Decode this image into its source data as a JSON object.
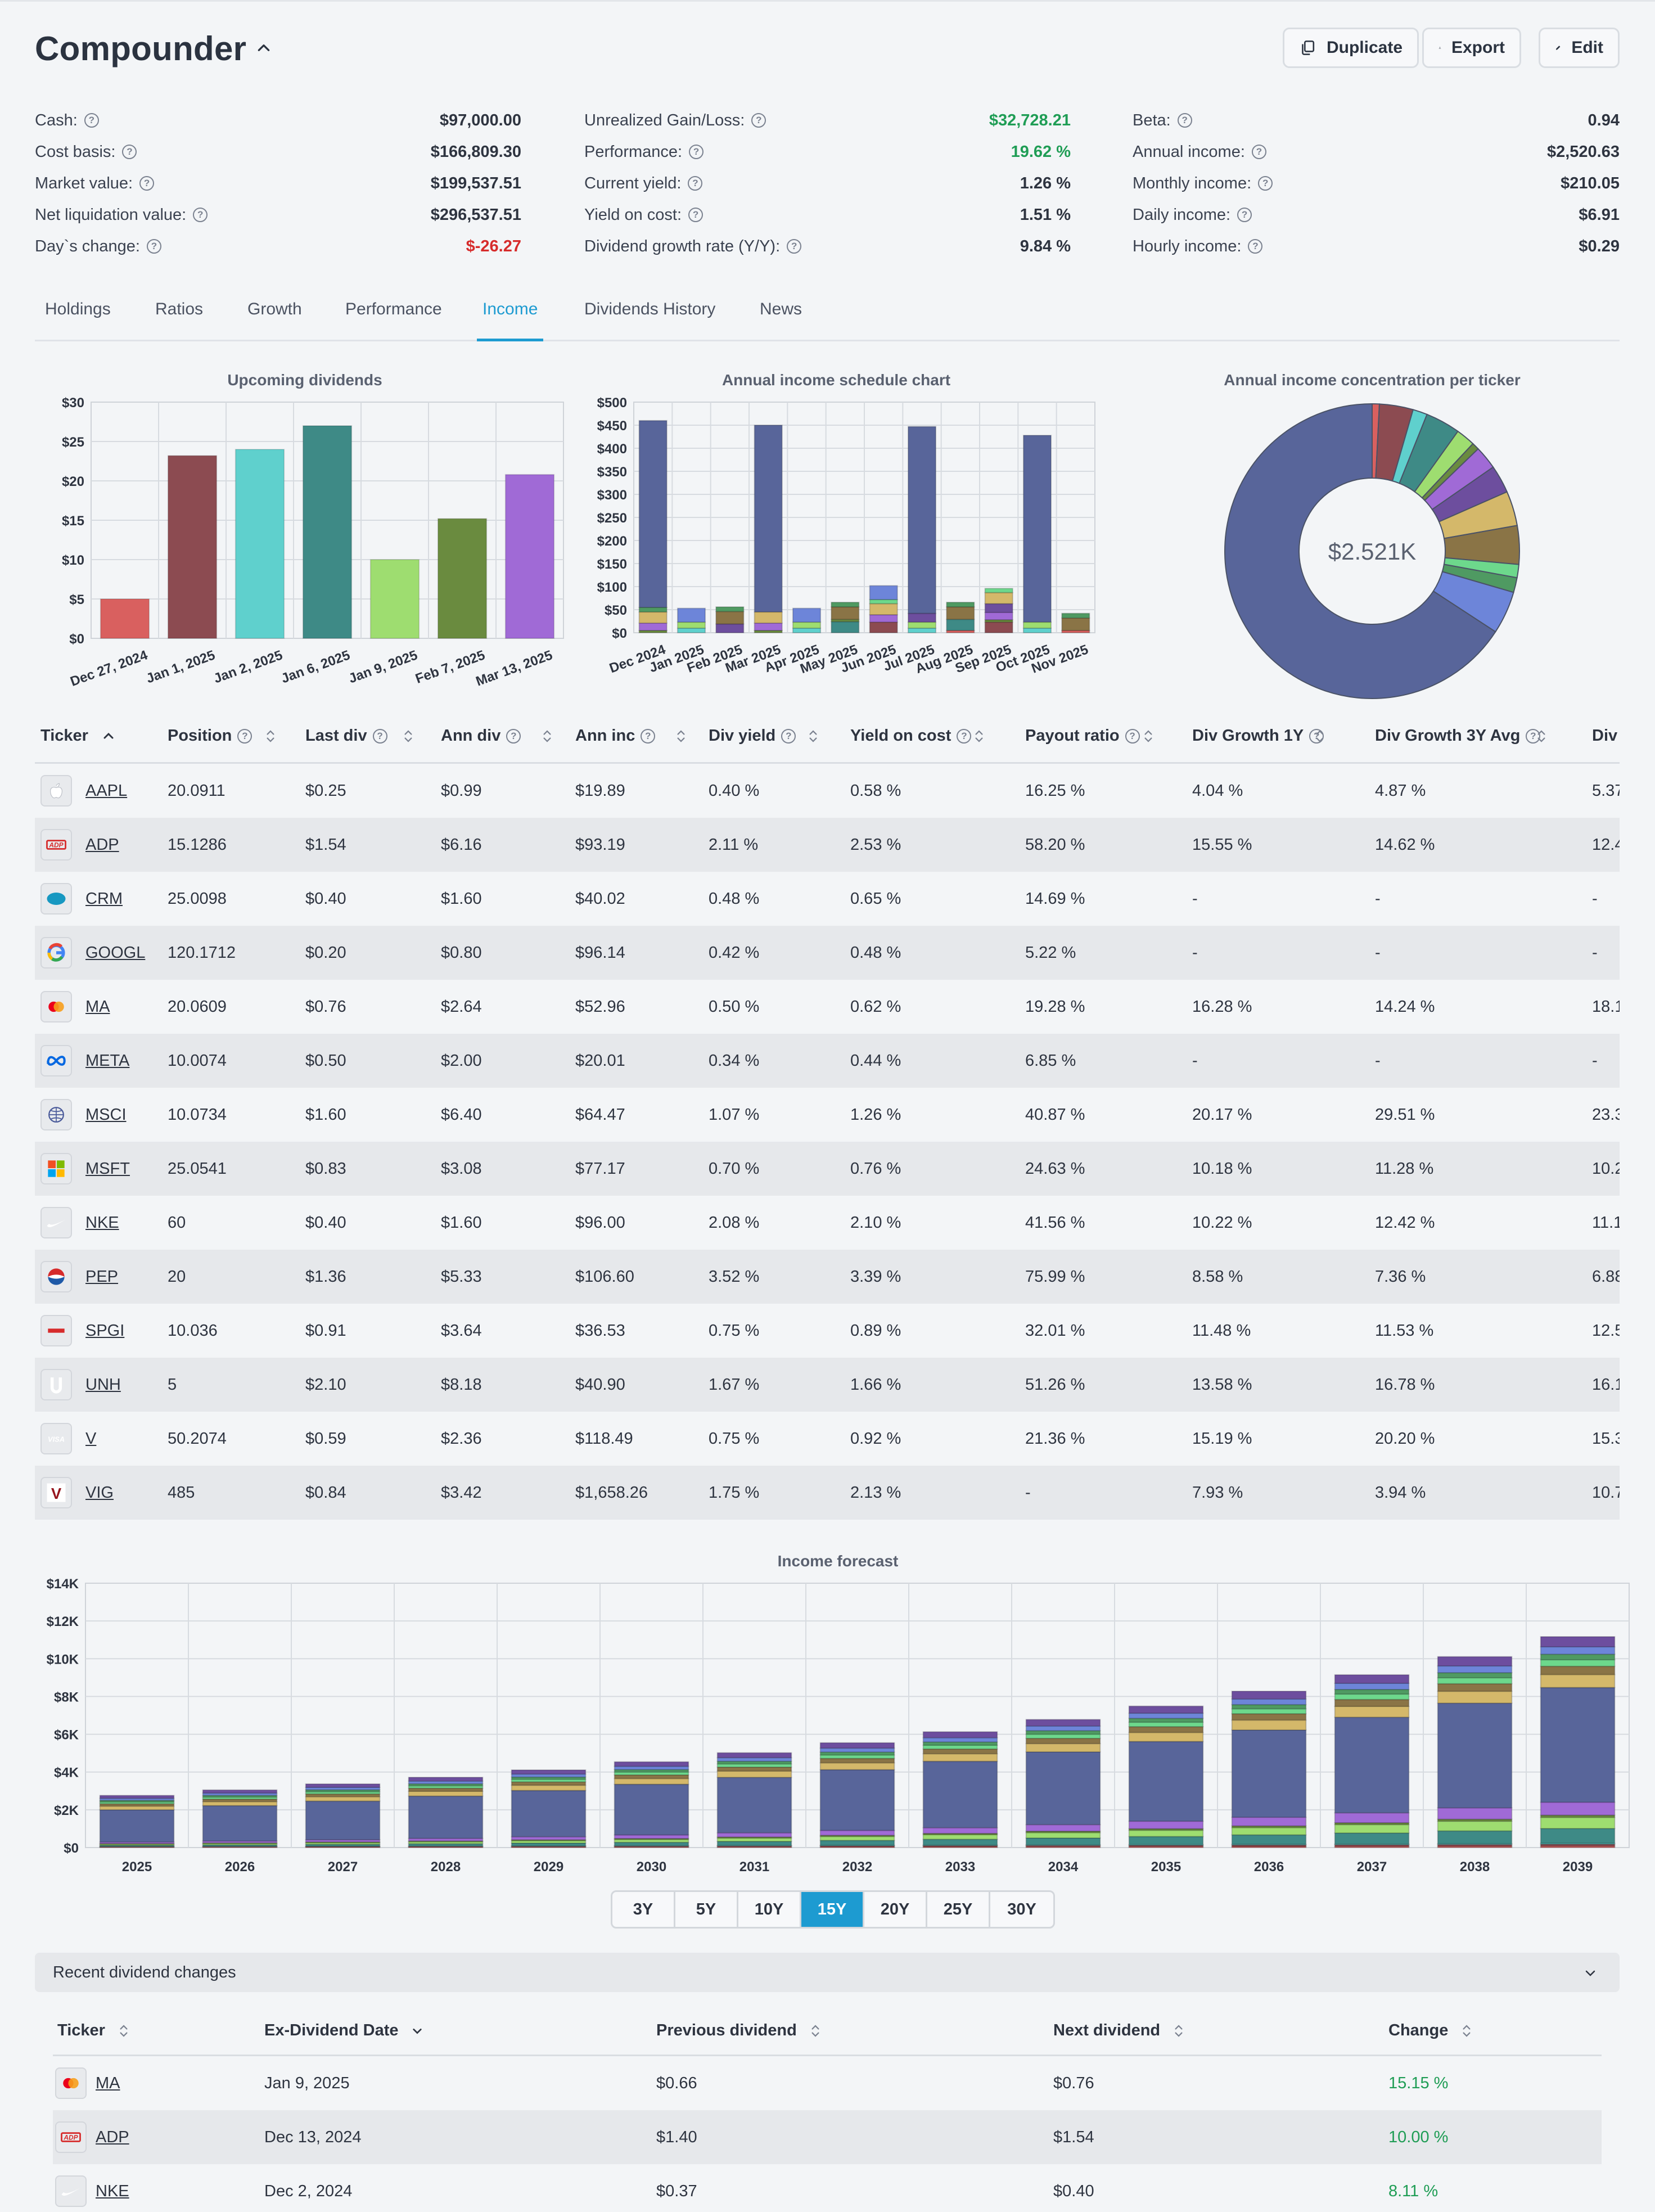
{
  "portfolio": {
    "title": "Compounder"
  },
  "actions": {
    "duplicate": "Duplicate",
    "export": "Export",
    "edit": "Edit"
  },
  "stats": {
    "col1": [
      {
        "label": "Cash:",
        "value": "$97,000.00"
      },
      {
        "label": "Cost basis:",
        "value": "$166,809.30"
      },
      {
        "label": "Market value:",
        "value": "$199,537.51"
      },
      {
        "label": "Net liquidation value:",
        "value": "$296,537.51"
      },
      {
        "label": "Day`s change:",
        "value": "$-26.27"
      }
    ],
    "col2": [
      {
        "label": "Unrealized Gain/Loss:",
        "value": "$32,728.21"
      },
      {
        "label": "Performance:",
        "value": "19.62 %"
      },
      {
        "label": "Current yield:",
        "value": "1.26 %"
      },
      {
        "label": "Yield on cost:",
        "value": "1.51 %"
      },
      {
        "label": "Dividend growth rate (Y/Y):",
        "value": "9.84 %"
      }
    ],
    "col3": [
      {
        "label": "Beta:",
        "value": "0.94"
      },
      {
        "label": "Annual income:",
        "value": "$2,520.63"
      },
      {
        "label": "Monthly income:",
        "value": "$210.05"
      },
      {
        "label": "Daily income:",
        "value": "$6.91"
      },
      {
        "label": "Hourly income:",
        "value": "$0.29"
      }
    ]
  },
  "tabs": [
    "Holdings",
    "Ratios",
    "Growth",
    "Performance",
    "Income",
    "Dividends History",
    "News"
  ],
  "active_tab": "Income",
  "colors": {
    "AAPL": "#d9605f",
    "ADP": "#8c4b51",
    "CRM": "#5fd0cd",
    "GOOGL": "#3e8a86",
    "MA": "#9edd70",
    "META": "#6a8b3f",
    "MSCI": "#a06ad6",
    "MSFT": "#6d4e9e",
    "NKE": "#d4b86a",
    "PEP": "#8a7446",
    "SPGI": "#6dd88c",
    "UNH": "#4f9a62",
    "V": "#6d85d9",
    "VIG": "#58659a",
    "accent": "#1d9bd1",
    "positive": "#1f9d55",
    "negative": "#d62b2b"
  },
  "chart_data": [
    {
      "type": "bar",
      "title": "Upcoming dividends",
      "categories": [
        "Dec 27, 2024",
        "Jan 1, 2025",
        "Jan 2, 2025",
        "Jan 6, 2025",
        "Jan 9, 2025",
        "Feb 7, 2025",
        "Mar 13, 2025"
      ],
      "values": [
        5,
        23.2,
        24,
        27,
        10,
        15.2,
        20.8
      ],
      "bar_colors": [
        "#d9605f",
        "#8c4b51",
        "#5fd0cd",
        "#3e8a86",
        "#9edd70",
        "#6a8b3f",
        "#a06ad6"
      ],
      "ylim": [
        0,
        30
      ],
      "yticks": [
        "$0",
        "$5",
        "$10",
        "$15",
        "$20",
        "$25",
        "$30"
      ],
      "grid": true
    },
    {
      "type": "bar",
      "stacked": true,
      "title": "Annual income schedule chart",
      "categories": [
        "Dec 2024",
        "Jan 2025",
        "Feb 2025",
        "Mar 2025",
        "Apr 2025",
        "May 2025",
        "Jun 2025",
        "Jul 2025",
        "Aug 2025",
        "Sep 2025",
        "Oct 2025",
        "Nov 2025"
      ],
      "series": [
        {
          "name": "AAPL",
          "values": [
            0,
            0,
            0,
            0,
            0,
            0,
            0,
            0,
            5,
            0,
            0,
            5
          ]
        },
        {
          "name": "ADP",
          "values": [
            0,
            0,
            0,
            0,
            0,
            0,
            23,
            0,
            0,
            23,
            0,
            0
          ]
        },
        {
          "name": "CRM",
          "values": [
            0,
            10,
            0,
            0,
            10,
            0,
            0,
            10,
            0,
            0,
            10,
            0
          ]
        },
        {
          "name": "GOOGL",
          "values": [
            0,
            0,
            0,
            0,
            0,
            24,
            0,
            0,
            24,
            0,
            0,
            0
          ]
        },
        {
          "name": "MA",
          "values": [
            0,
            13,
            0,
            0,
            13,
            0,
            0,
            13,
            0,
            0,
            13,
            0
          ]
        },
        {
          "name": "META",
          "values": [
            5,
            0,
            0,
            5,
            0,
            5,
            0,
            0,
            0,
            5,
            0,
            0
          ]
        },
        {
          "name": "MSCI",
          "values": [
            16,
            0,
            0,
            16,
            0,
            0,
            16,
            0,
            0,
            16,
            0,
            0
          ]
        },
        {
          "name": "MSFT",
          "values": [
            0,
            0,
            19,
            0,
            0,
            0,
            0,
            19,
            0,
            19,
            0,
            0
          ]
        },
        {
          "name": "NKE",
          "values": [
            24,
            0,
            0,
            24,
            0,
            0,
            24,
            0,
            0,
            24,
            0,
            0
          ]
        },
        {
          "name": "PEP",
          "values": [
            0,
            0,
            27,
            0,
            0,
            27,
            0,
            0,
            27,
            0,
            0,
            27
          ]
        },
        {
          "name": "SPGI",
          "values": [
            0,
            0,
            0,
            0,
            0,
            0,
            9,
            0,
            0,
            9,
            0,
            0
          ]
        },
        {
          "name": "UNH",
          "values": [
            10,
            0,
            10,
            0,
            0,
            10,
            0,
            0,
            10,
            0,
            0,
            10
          ]
        },
        {
          "name": "V",
          "values": [
            0,
            30,
            0,
            0,
            30,
            0,
            30,
            0,
            0,
            0,
            0,
            0
          ]
        },
        {
          "name": "VIG",
          "values": [
            405,
            0,
            0,
            405,
            0,
            0,
            0,
            405,
            0,
            0,
            405,
            0
          ]
        }
      ],
      "ylim": [
        0,
        500
      ],
      "yticks": [
        "$0",
        "$50",
        "$100",
        "$150",
        "$200",
        "$250",
        "$300",
        "$350",
        "$400",
        "$450",
        "$500"
      ],
      "grid": true
    },
    {
      "type": "pie",
      "donut": true,
      "title": "Annual income concentration per ticker",
      "center_label": "$2.521K",
      "labels": [
        "AAPL",
        "ADP",
        "CRM",
        "GOOGL",
        "MA",
        "META",
        "MSCI",
        "MSFT",
        "NKE",
        "PEP",
        "SPGI",
        "UNH",
        "V",
        "VIG"
      ],
      "values": [
        19.89,
        93.19,
        40.02,
        96.14,
        52.96,
        20.01,
        64.47,
        77.17,
        96.0,
        106.6,
        36.53,
        40.9,
        118.49,
        1658.26
      ]
    },
    {
      "type": "bar",
      "stacked": true,
      "title": "Income forecast",
      "categories": [
        "2025",
        "2026",
        "2027",
        "2028",
        "2029",
        "2030",
        "2031",
        "2032",
        "2033",
        "2034",
        "2035",
        "2036",
        "2037",
        "2038",
        "2039"
      ],
      "totals": [
        2760,
        3050,
        3370,
        3720,
        4110,
        4540,
        5020,
        5550,
        6130,
        6780,
        7490,
        8280,
        9150,
        10110,
        11170
      ],
      "ylim": [
        0,
        14000
      ],
      "yticks": [
        "$0",
        "$2K",
        "$4K",
        "$6K",
        "$8K",
        "$10K",
        "$12K",
        "$14K"
      ],
      "grid": true
    }
  ],
  "holdings": {
    "columns": [
      "Ticker",
      "Position",
      "Last div",
      "Ann div",
      "Ann inc",
      "Div yield",
      "Yield on cost",
      "Payout ratio",
      "Div Growth 1Y",
      "Div Growth 3Y Avg",
      "Div"
    ],
    "rows": [
      {
        "ticker": "AAPL",
        "position": "20.0911",
        "last_div": "$0.25",
        "ann_div": "$0.99",
        "ann_inc": "$19.89",
        "div_yield": "0.40 %",
        "yoc": "0.58 %",
        "payout": "16.25 %",
        "g1y": "4.04 %",
        "g3y": "4.87 %",
        "g5y": "5.37"
      },
      {
        "ticker": "ADP",
        "position": "15.1286",
        "last_div": "$1.54",
        "ann_div": "$6.16",
        "ann_inc": "$93.19",
        "div_yield": "2.11 %",
        "yoc": "2.53 %",
        "payout": "58.20 %",
        "g1y": "15.55 %",
        "g3y": "14.62 %",
        "g5y": "12.4"
      },
      {
        "ticker": "CRM",
        "position": "25.0098",
        "last_div": "$0.40",
        "ann_div": "$1.60",
        "ann_inc": "$40.02",
        "div_yield": "0.48 %",
        "yoc": "0.65 %",
        "payout": "14.69 %",
        "g1y": "-",
        "g3y": "-",
        "g5y": "-"
      },
      {
        "ticker": "GOOGL",
        "position": "120.1712",
        "last_div": "$0.20",
        "ann_div": "$0.80",
        "ann_inc": "$96.14",
        "div_yield": "0.42 %",
        "yoc": "0.48 %",
        "payout": "5.22 %",
        "g1y": "-",
        "g3y": "-",
        "g5y": "-"
      },
      {
        "ticker": "MA",
        "position": "20.0609",
        "last_div": "$0.76",
        "ann_div": "$2.64",
        "ann_inc": "$52.96",
        "div_yield": "0.50 %",
        "yoc": "0.62 %",
        "payout": "19.28 %",
        "g1y": "16.28 %",
        "g3y": "14.24 %",
        "g5y": "18.1"
      },
      {
        "ticker": "META",
        "position": "10.0074",
        "last_div": "$0.50",
        "ann_div": "$2.00",
        "ann_inc": "$20.01",
        "div_yield": "0.34 %",
        "yoc": "0.44 %",
        "payout": "6.85 %",
        "g1y": "-",
        "g3y": "-",
        "g5y": "-"
      },
      {
        "ticker": "MSCI",
        "position": "10.0734",
        "last_div": "$1.60",
        "ann_div": "$6.40",
        "ann_inc": "$64.47",
        "div_yield": "1.07 %",
        "yoc": "1.26 %",
        "payout": "40.87 %",
        "g1y": "20.17 %",
        "g3y": "29.51 %",
        "g5y": "23.3"
      },
      {
        "ticker": "MSFT",
        "position": "25.0541",
        "last_div": "$0.83",
        "ann_div": "$3.08",
        "ann_inc": "$77.17",
        "div_yield": "0.70 %",
        "yoc": "0.76 %",
        "payout": "24.63 %",
        "g1y": "10.18 %",
        "g3y": "11.28 %",
        "g5y": "10.2"
      },
      {
        "ticker": "NKE",
        "position": "60",
        "last_div": "$0.40",
        "ann_div": "$1.60",
        "ann_inc": "$96.00",
        "div_yield": "2.08 %",
        "yoc": "2.10 %",
        "payout": "41.56 %",
        "g1y": "10.22 %",
        "g3y": "12.42 %",
        "g5y": "11.1"
      },
      {
        "ticker": "PEP",
        "position": "20",
        "last_div": "$1.36",
        "ann_div": "$5.33",
        "ann_inc": "$106.60",
        "div_yield": "3.52 %",
        "yoc": "3.39 %",
        "payout": "75.99 %",
        "g1y": "8.58 %",
        "g3y": "7.36 %",
        "g5y": "6.88"
      },
      {
        "ticker": "SPGI",
        "position": "10.036",
        "last_div": "$0.91",
        "ann_div": "$3.64",
        "ann_inc": "$36.53",
        "div_yield": "0.75 %",
        "yoc": "0.89 %",
        "payout": "32.01 %",
        "g1y": "11.48 %",
        "g3y": "11.53 %",
        "g5y": "12.5"
      },
      {
        "ticker": "UNH",
        "position": "5",
        "last_div": "$2.10",
        "ann_div": "$8.18",
        "ann_inc": "$40.90",
        "div_yield": "1.67 %",
        "yoc": "1.66 %",
        "payout": "51.26 %",
        "g1y": "13.58 %",
        "g3y": "16.78 %",
        "g5y": "16.1"
      },
      {
        "ticker": "V",
        "position": "50.2074",
        "last_div": "$0.59",
        "ann_div": "$2.36",
        "ann_inc": "$118.49",
        "div_yield": "0.75 %",
        "yoc": "0.92 %",
        "payout": "21.36 %",
        "g1y": "15.19 %",
        "g3y": "20.20 %",
        "g5y": "15.3"
      },
      {
        "ticker": "VIG",
        "position": "485",
        "last_div": "$0.84",
        "ann_div": "$3.42",
        "ann_inc": "$1,658.26",
        "div_yield": "1.75 %",
        "yoc": "2.13 %",
        "payout": "-",
        "g1y": "7.93 %",
        "g3y": "3.94 %",
        "g5y": "10.7"
      }
    ]
  },
  "forecast_periods": [
    "3Y",
    "5Y",
    "10Y",
    "15Y",
    "20Y",
    "25Y",
    "30Y"
  ],
  "forecast_active": "15Y",
  "recent_changes": {
    "title": "Recent dividend changes",
    "columns": [
      "Ticker",
      "Ex-Dividend Date",
      "Previous dividend",
      "Next dividend",
      "Change"
    ],
    "rows": [
      {
        "ticker": "MA",
        "date": "Jan 9, 2025",
        "prev": "$0.66",
        "next": "$0.76",
        "change": "15.15 %"
      },
      {
        "ticker": "ADP",
        "date": "Dec 13, 2024",
        "prev": "$1.40",
        "next": "$1.54",
        "change": "10.00 %"
      },
      {
        "ticker": "NKE",
        "date": "Dec 2, 2024",
        "prev": "$0.37",
        "next": "$0.40",
        "change": "8.11 %"
      }
    ]
  }
}
